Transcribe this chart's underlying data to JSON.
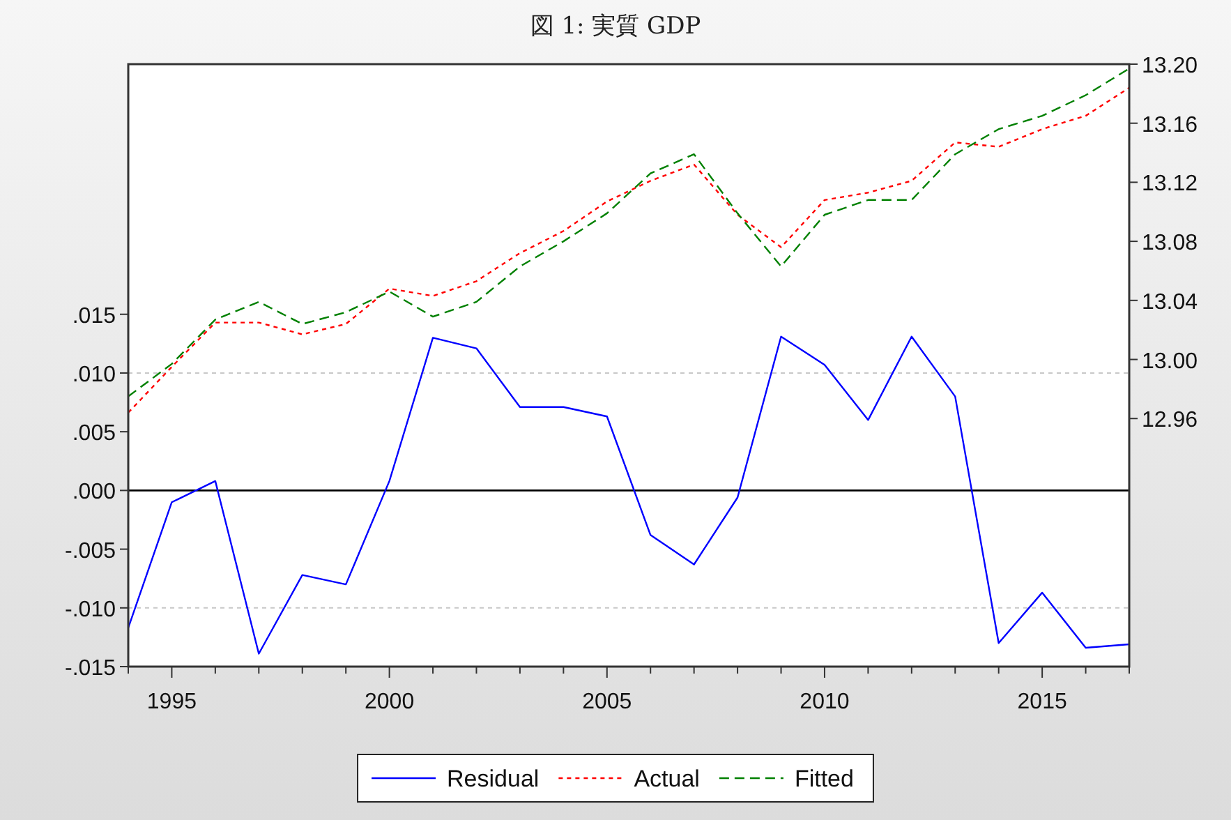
{
  "chart_data": {
    "type": "line",
    "title": "図 1: 実質 GDP",
    "x": [
      1994,
      1995,
      1996,
      1997,
      1998,
      1999,
      2000,
      2001,
      2002,
      2003,
      2004,
      2005,
      2006,
      2007,
      2008,
      2009,
      2010,
      2011,
      2012,
      2013,
      2014,
      2015,
      2016,
      2017
    ],
    "series": [
      {
        "name": "Residual",
        "color": "#0000ff",
        "line_style": "solid",
        "values": [
          -0.0117,
          -0.001,
          0.0008,
          -0.0139,
          -0.0072,
          -0.008,
          0.0008,
          0.013,
          0.0121,
          0.0071,
          0.0071,
          0.0063,
          -0.0038,
          -0.0063,
          -0.0006,
          0.0131,
          0.0107,
          0.006,
          0.0131,
          0.008,
          -0.013,
          -0.0087,
          -0.0134,
          -0.0131
        ]
      },
      {
        "name": "Actual",
        "color": "#ff0000",
        "line_style": "dotted",
        "axis": "y2",
        "values": [
          12.964,
          12.995,
          13.025,
          13.025,
          13.017,
          13.024,
          13.048,
          13.043,
          13.053,
          13.072,
          13.087,
          13.107,
          13.121,
          13.132,
          13.098,
          13.076,
          13.108,
          13.113,
          13.121,
          13.147,
          13.144,
          13.156,
          13.165,
          13.184
        ]
      },
      {
        "name": "Fitted",
        "color": "#008000",
        "line_style": "dashed",
        "axis": "y2",
        "values": [
          12.975,
          12.997,
          13.027,
          13.039,
          13.024,
          13.032,
          13.046,
          13.029,
          13.039,
          13.063,
          13.08,
          13.099,
          13.126,
          13.139,
          13.099,
          13.063,
          13.098,
          13.108,
          13.108,
          13.139,
          13.156,
          13.165,
          13.179,
          13.197
        ]
      }
    ],
    "xlim": [
      1994,
      2017
    ],
    "xticks": [
      {
        "value": 1994,
        "label": null
      },
      1995,
      {
        "value": 1996,
        "label": null
      },
      {
        "value": 1997,
        "label": null
      },
      {
        "value": 1998,
        "label": null
      },
      {
        "value": 1999,
        "label": null
      },
      2000,
      {
        "value": 2001,
        "label": null
      },
      {
        "value": 2002,
        "label": null
      },
      {
        "value": 2003,
        "label": null
      },
      {
        "value": 2004,
        "label": null
      },
      2005,
      {
        "value": 2006,
        "label": null
      },
      {
        "value": 2007,
        "label": null
      },
      {
        "value": 2008,
        "label": null
      },
      {
        "value": 2009,
        "label": null
      },
      2010,
      {
        "value": 2011,
        "label": null
      },
      {
        "value": 2012,
        "label": null
      },
      {
        "value": 2013,
        "label": null
      },
      {
        "value": 2014,
        "label": null
      },
      2015,
      {
        "value": 2016,
        "label": null
      },
      {
        "value": 2017,
        "label": null
      }
    ],
    "ylim": [
      -0.015,
      0.0363
    ],
    "yticks": [
      {
        "value": -0.015,
        "label": "-.015"
      },
      {
        "value": -0.01,
        "label": "-.010"
      },
      {
        "value": -0.005,
        "label": "-.005"
      },
      {
        "value": 0,
        "label": ".000"
      },
      {
        "value": 0.005,
        "label": ".005"
      },
      {
        "value": 0.01,
        "label": ".010"
      },
      {
        "value": 0.015,
        "label": ".015"
      }
    ],
    "y2lim": [
      12.792,
      13.2
    ],
    "y2ticks": [
      {
        "value": 12.96,
        "label": "12.96"
      },
      {
        "value": 13.0,
        "label": "13.00"
      },
      {
        "value": 13.04,
        "label": "13.04"
      },
      {
        "value": 13.08,
        "label": "13.08"
      },
      {
        "value": 13.12,
        "label": "13.12"
      },
      {
        "value": 13.16,
        "label": "13.16"
      },
      {
        "value": 13.2,
        "label": "13.20"
      }
    ],
    "ref_lines": [
      {
        "axis": "y",
        "value": 0.01,
        "color": "#c8c8c8",
        "line_style": "dotted"
      },
      {
        "axis": "y",
        "value": -0.01,
        "color": "#c8c8c8",
        "line_style": "dotted"
      },
      {
        "axis": "y",
        "value": 0,
        "color": "#000000",
        "line_style": "solid"
      }
    ],
    "grid": false,
    "legend": "bottom"
  }
}
